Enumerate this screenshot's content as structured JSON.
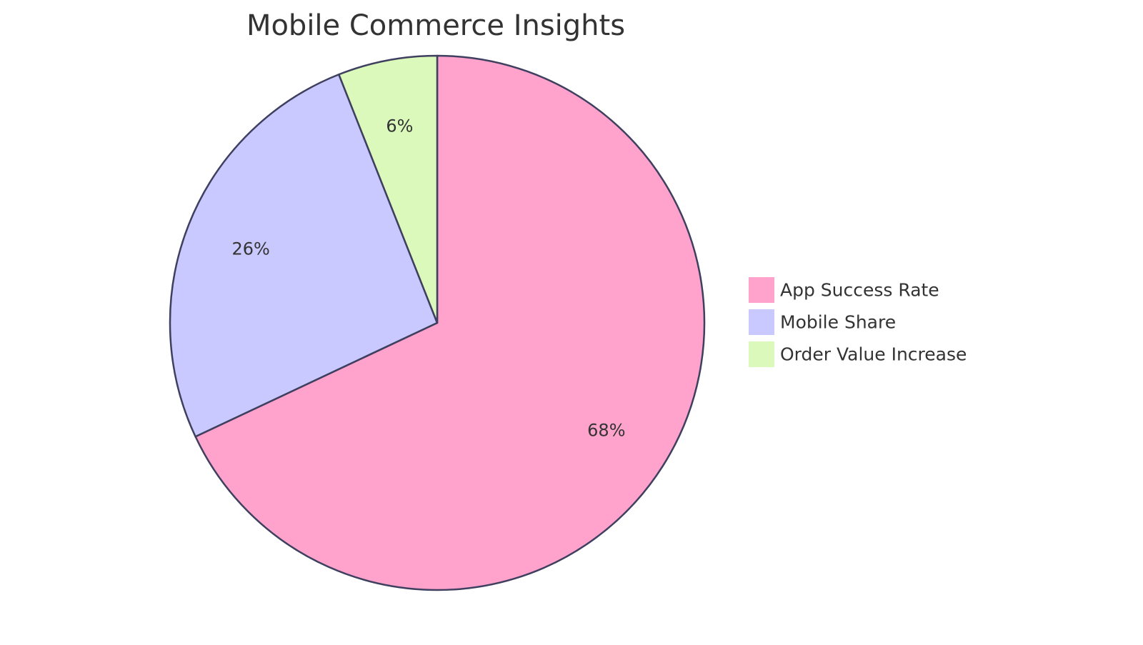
{
  "chart_data": {
    "type": "pie",
    "title": "Mobile Commerce Insights",
    "legend_position": "right",
    "categories": [
      "App Success Rate",
      "Mobile Share",
      "Order Value Increase"
    ],
    "values": [
      68,
      26,
      6
    ],
    "labels": [
      "68%",
      "26%",
      "6%"
    ],
    "colors": [
      "#ffa3cd",
      "#c9c9ff",
      "#daf9bb"
    ],
    "stroke_color": "#3f3f5f"
  }
}
